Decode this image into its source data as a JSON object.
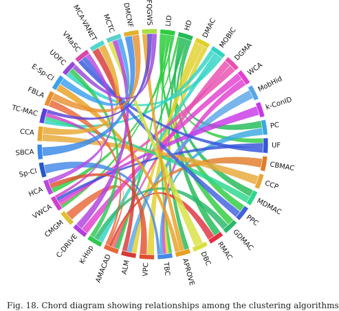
{
  "diagram": {
    "type": "chord-diagram",
    "nodes": [
      {
        "label": "LID",
        "color": "#2ecc40"
      },
      {
        "label": "HD",
        "color": "#22bb55"
      },
      {
        "label": "DMAC",
        "color": "#e0d02a"
      },
      {
        "label": "MOBIC",
        "color": "#2fd4c4"
      },
      {
        "label": "DGMA",
        "color": "#e84fb0"
      },
      {
        "label": "WCA",
        "color": "#e040d0"
      },
      {
        "label": "MobHid",
        "color": "#5aa6e8"
      },
      {
        "label": "k-ConID",
        "color": "#c838e8"
      },
      {
        "label": "PC",
        "color": "#3aa8e0"
      },
      {
        "label": "UF",
        "color": "#3555d8"
      },
      {
        "label": "CBMAC",
        "color": "#e07d2a"
      },
      {
        "label": "CCP",
        "color": "#e8a838"
      },
      {
        "label": "MDMAC",
        "color": "#2cd68c"
      },
      {
        "label": "PPC",
        "color": "#4060e0"
      },
      {
        "label": "GDMAC",
        "color": "#28b86a"
      },
      {
        "label": "RMAC",
        "color": "#e03040"
      },
      {
        "label": "DBC",
        "color": "#d8e040"
      },
      {
        "label": "APROVE",
        "color": "#e8a020"
      },
      {
        "label": "TBC",
        "color": "#4488e8"
      },
      {
        "label": "VPC",
        "color": "#e05030"
      },
      {
        "label": "ALM",
        "color": "#d83838"
      },
      {
        "label": "AMACAD",
        "color": "#e86838"
      },
      {
        "label": "K-Hop",
        "color": "#30c850"
      },
      {
        "label": "C-DRIVE",
        "color": "#b040e0"
      },
      {
        "label": "CMGM",
        "color": "#e0c030"
      },
      {
        "label": "VWCA",
        "color": "#d040c8"
      },
      {
        "label": "HCA",
        "color": "#b848e0"
      },
      {
        "label": "Sp-Cl",
        "color": "#2858c8"
      },
      {
        "label": "SBCA",
        "color": "#3888e8"
      },
      {
        "label": "CCA",
        "color": "#e8a830"
      },
      {
        "label": "TC-MAC",
        "color": "#5a40d8"
      },
      {
        "label": "FBLA",
        "color": "#e89030"
      },
      {
        "label": "E-Sp-Cl",
        "color": "#3aa0f0"
      },
      {
        "label": "UOFC",
        "color": "#9848d8"
      },
      {
        "label": "VMaSC",
        "color": "#d848a8"
      },
      {
        "label": "MCA-VANET",
        "color": "#50d8d0"
      },
      {
        "label": "MCTC",
        "color": "#5ad0c8"
      },
      {
        "label": "DMCNF",
        "color": "#e0b030"
      },
      {
        "label": "FQGWS",
        "color": "#a8e040"
      }
    ],
    "links": [
      [
        "LID",
        "PPC"
      ],
      [
        "LID",
        "GDMAC"
      ],
      [
        "LID",
        "HD"
      ],
      [
        "LID",
        "AMACAD"
      ],
      [
        "LID",
        "TBC"
      ],
      [
        "LID",
        "VWCA"
      ],
      [
        "LID",
        "UF"
      ],
      [
        "LID",
        "HCA"
      ],
      [
        "HD",
        "MDMAC"
      ],
      [
        "HD",
        "APROVE"
      ],
      [
        "HD",
        "AMACAD"
      ],
      [
        "HD",
        "RMAC"
      ],
      [
        "HD",
        "PC"
      ],
      [
        "DMAC",
        "VPC"
      ],
      [
        "DMAC",
        "ALM"
      ],
      [
        "DMAC",
        "TBC"
      ],
      [
        "MOBIC",
        "TC-MAC"
      ],
      [
        "MOBIC",
        "K-Hop"
      ],
      [
        "MOBIC",
        "UOFC"
      ],
      [
        "DGMA",
        "AMACAD"
      ],
      [
        "DGMA",
        "VWCA"
      ],
      [
        "WCA",
        "C-DRIVE"
      ],
      [
        "WCA",
        "TBC"
      ],
      [
        "MobHid",
        "ALM"
      ],
      [
        "k-ConID",
        "VWCA"
      ],
      [
        "PC",
        "TBC"
      ],
      [
        "UF",
        "VWCA"
      ],
      [
        "UF",
        "VMaSC"
      ],
      [
        "CBMAC",
        "AMACAD"
      ],
      [
        "CCP",
        "CCA"
      ],
      [
        "MDMAC",
        "TC-MAC"
      ],
      [
        "PPC",
        "VMaSC"
      ],
      [
        "GDMAC",
        "K-Hop"
      ],
      [
        "RMAC",
        "AMACAD"
      ],
      [
        "DBC",
        "MCTC"
      ],
      [
        "APROVE",
        "FQGWS"
      ],
      [
        "APROVE",
        "E-Sp-Cl"
      ],
      [
        "TBC",
        "Sp-Cl"
      ],
      [
        "VPC",
        "HCA"
      ],
      [
        "ALM",
        "MCA-VANET"
      ],
      [
        "AMACAD",
        "CMGM"
      ],
      [
        "AMACAD",
        "FBLA"
      ],
      [
        "K-Hop",
        "UOFC"
      ],
      [
        "C-DRIVE",
        "MCTC"
      ],
      [
        "VWCA",
        "TC-MAC"
      ],
      [
        "HCA",
        "VMaSC"
      ],
      [
        "SBCA",
        "DMCNF"
      ],
      [
        "CCA",
        "MCA-VANET"
      ],
      [
        "TC-MAC",
        "FQGWS"
      ],
      [
        "FBLA",
        "DMCNF"
      ],
      [
        "E-Sp-Cl",
        "MCTC"
      ],
      [
        "UOFC",
        "FQGWS"
      ]
    ]
  },
  "caption": "Fig. 18. Chord diagram showing relationships among the clustering algorithms"
}
